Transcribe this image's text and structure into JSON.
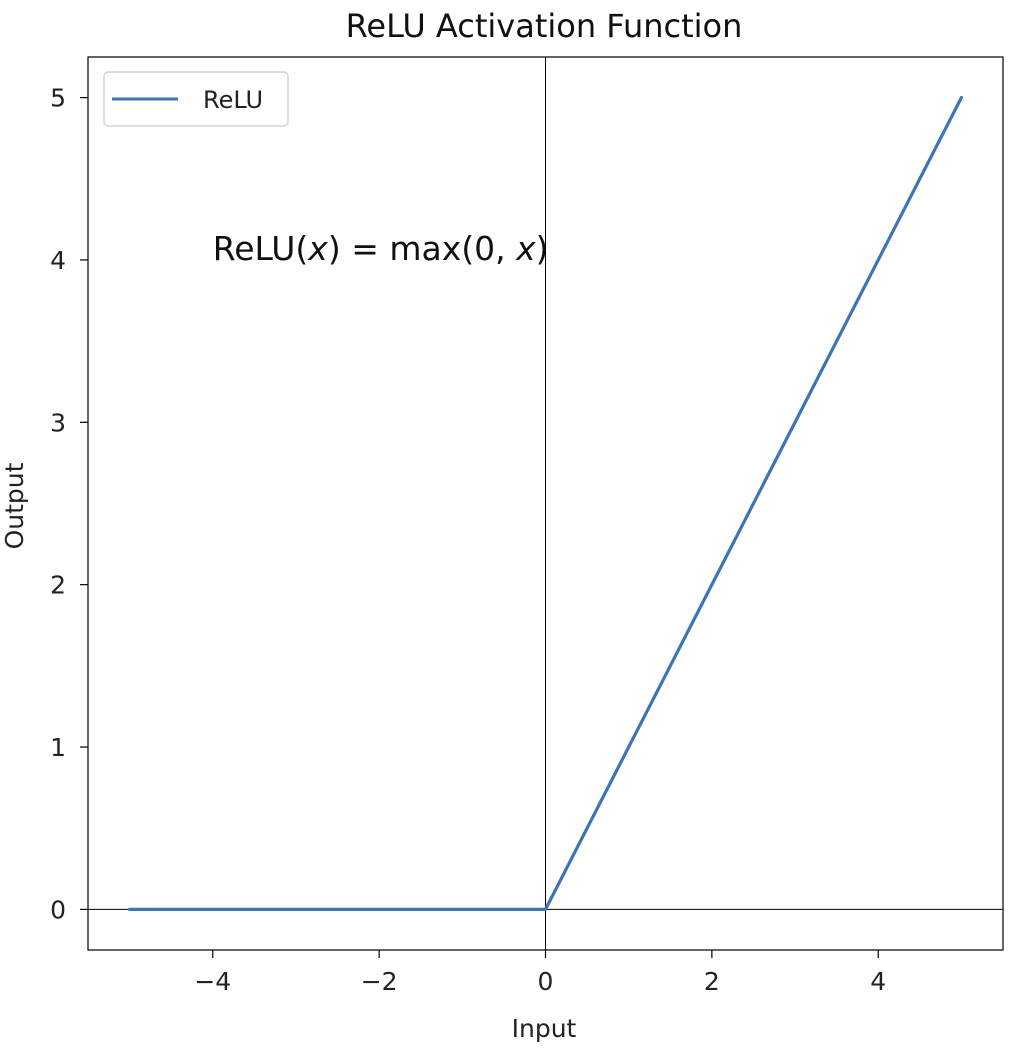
{
  "chart_data": {
    "type": "line",
    "title": "ReLU Activation Function",
    "xlabel": "Input",
    "ylabel": "Output",
    "xlim": [
      -5.5,
      5.5
    ],
    "ylim": [
      -0.25,
      5.25
    ],
    "xticks": [
      -4,
      -2,
      0,
      2,
      4
    ],
    "xtick_labels": [
      "−4",
      "−2",
      "0",
      "2",
      "4"
    ],
    "yticks": [
      0,
      1,
      2,
      3,
      4,
      5
    ],
    "ytick_labels": [
      "0",
      "1",
      "2",
      "3",
      "4",
      "5"
    ],
    "series": [
      {
        "name": "ReLU",
        "color": "#3a76b5",
        "x": [
          -5,
          0,
          5
        ],
        "y": [
          0,
          0,
          5
        ]
      }
    ],
    "reference_lines": {
      "vertical_at_x": 0,
      "horizontal_at_y": 0,
      "color": "#000000"
    },
    "legend": {
      "placement": "upper-left",
      "entries": [
        "ReLU"
      ]
    },
    "annotation": {
      "x": -4,
      "y": 4,
      "text_before": "ReLU(",
      "var1": "x",
      "text_middle": ") = max(0, ",
      "var2": "x",
      "text_after": ")"
    },
    "grid": false
  }
}
